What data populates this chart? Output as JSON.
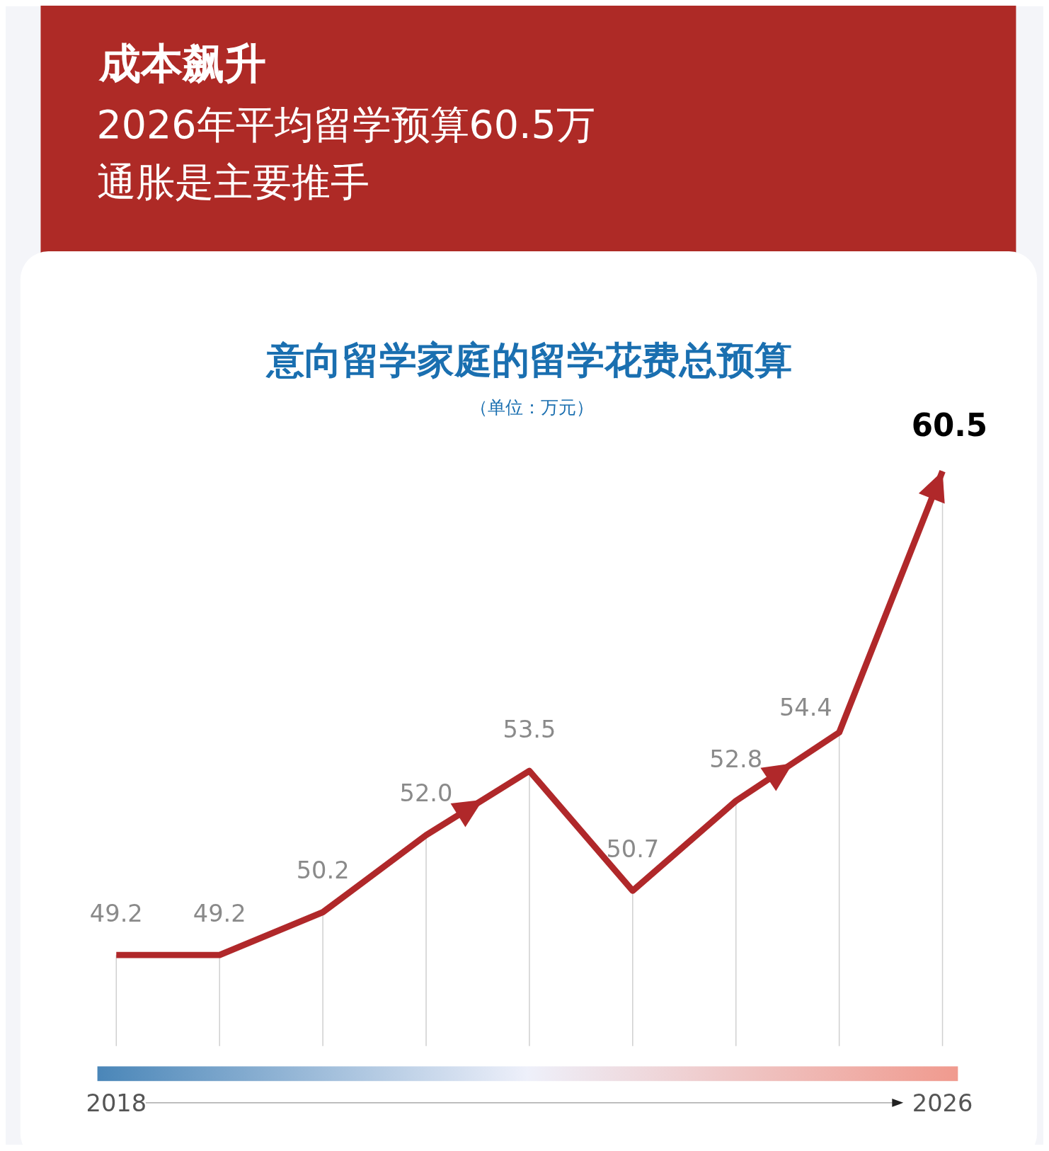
{
  "chart_data": {
    "type": "line",
    "title": "意向留学家庭的留学花费总预算",
    "subtitle": "（单位：万元）",
    "annotations": [
      "成本飙升",
      "2026年平均留学预算60.5万",
      "通胀是主要推手"
    ],
    "categories": [
      "2018",
      null,
      null,
      null,
      null,
      null,
      null,
      null,
      "2026"
    ],
    "series": [
      {
        "color": "#b0282a",
        "values": [
          49.2,
          49.2,
          50.2,
          52.0,
          53.5,
          50.7,
          52.8,
          54.4,
          60.5
        ],
        "value_labels": [
          "49.2",
          "49.2",
          "50.2",
          "52.0",
          "53.5",
          "50.7",
          "52.8",
          "54.4",
          "60.5"
        ]
      }
    ],
    "grid": "x",
    "marker": "none",
    "line_style": "solid"
  }
}
